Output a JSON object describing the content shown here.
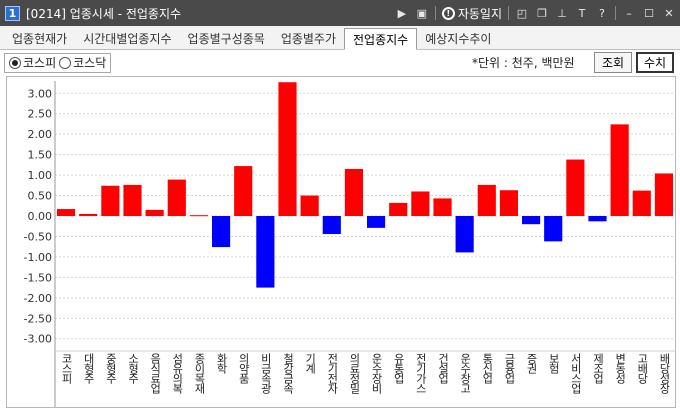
{
  "window": {
    "title": "[0214] 업종시세 - 전업종지수",
    "badge": "1",
    "autolock_label": "자동일지"
  },
  "tabs": [
    {
      "label": "업종현재가",
      "active": false
    },
    {
      "label": "시간대별업종지수",
      "active": false
    },
    {
      "label": "업종별구성종목",
      "active": false
    },
    {
      "label": "업종별주가",
      "active": false
    },
    {
      "label": "전업종지수",
      "active": true
    },
    {
      "label": "예상지수추이",
      "active": false
    }
  ],
  "toolbar": {
    "market_options": [
      {
        "label": "코스피",
        "selected": true
      },
      {
        "label": "코스닥",
        "selected": false
      }
    ],
    "unit_text": "*단위 : 천주, 백만원",
    "query_label": "조회",
    "value_label": "수치"
  },
  "colors": {
    "positive": "#ff0000",
    "negative": "#0000ff",
    "gridline": "#d8d8d8"
  },
  "chart_data": {
    "type": "bar",
    "ylim": [
      -3.3,
      3.3
    ],
    "yticks": [
      "3.00",
      "2.50",
      "2.00",
      "1.50",
      "1.00",
      "0.50",
      "0.00",
      "-0.50",
      "-1.00",
      "-1.50",
      "-2.00",
      "-2.50",
      "-3.00"
    ],
    "grid": true,
    "categories": [
      "코스피",
      "대형주",
      "중형주",
      "소형주",
      "음식료업",
      "섬유의복",
      "종이목재",
      "화학",
      "의약품",
      "비금속광",
      "철강금속",
      "기계",
      "전기전자",
      "의료정밀",
      "운수장비",
      "유통업",
      "전기가스",
      "건설업",
      "운수창고",
      "통신업",
      "금융업",
      "증권",
      "보험",
      "서비스업",
      "제조업",
      "변동성",
      "고배당",
      "배당성장"
    ],
    "values": [
      0.17,
      0.05,
      0.74,
      0.76,
      0.15,
      0.89,
      0.02,
      -0.76,
      1.22,
      -1.75,
      3.27,
      0.5,
      -0.44,
      1.15,
      -0.29,
      0.32,
      0.6,
      0.43,
      -0.89,
      0.76,
      0.63,
      -0.2,
      -0.62,
      1.38,
      -0.13,
      2.24,
      0.62,
      1.04
    ]
  }
}
